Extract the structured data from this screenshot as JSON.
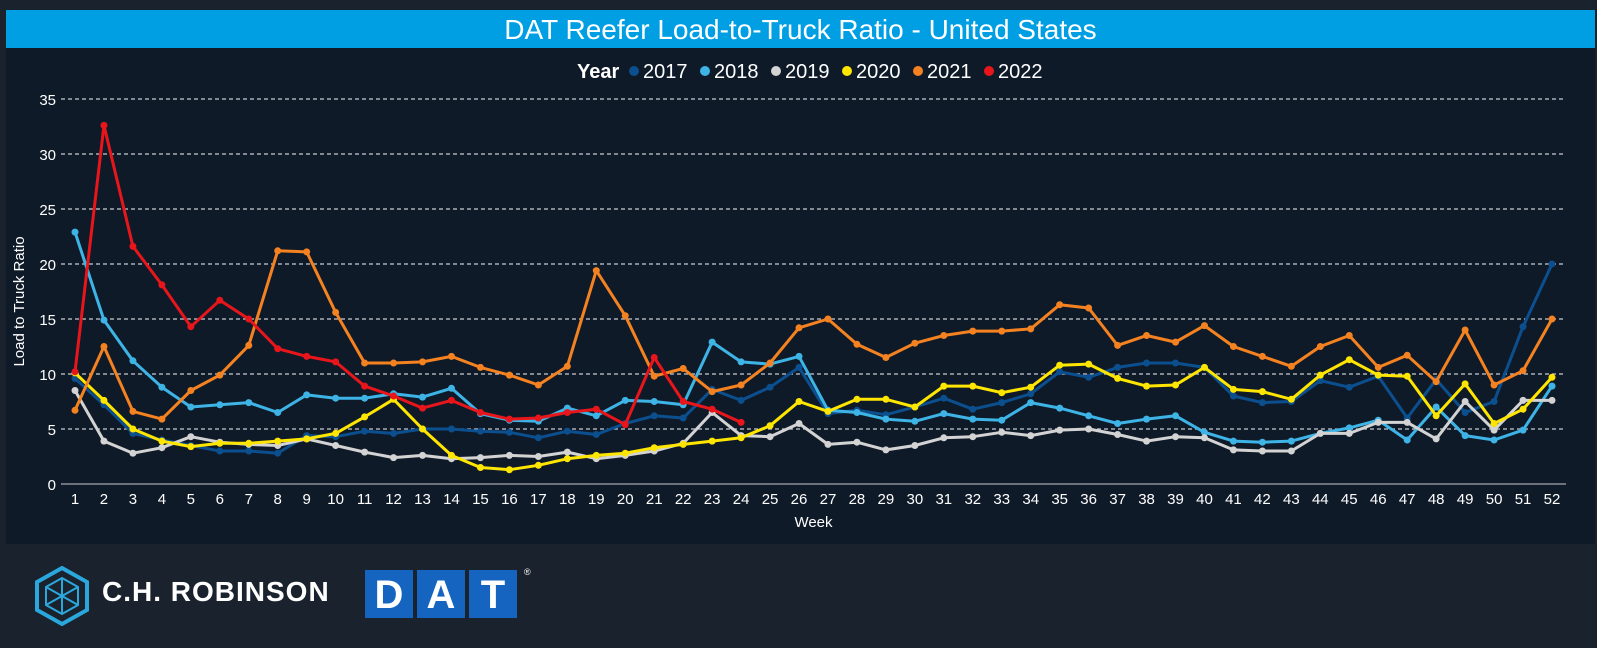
{
  "chart_data": {
    "type": "line",
    "title": "DAT Reefer Load-to-Truck Ratio - United States",
    "xlabel": "Week",
    "ylabel": "Load to Truck Ratio",
    "legend_title": "Year",
    "legend_position": "top-center",
    "ylim": [
      0,
      35
    ],
    "yticks": [
      0,
      5,
      10,
      15,
      20,
      25,
      30,
      35
    ],
    "grid": "horizontal-dashed",
    "categories": [
      1,
      2,
      3,
      4,
      5,
      6,
      7,
      8,
      9,
      10,
      11,
      12,
      13,
      14,
      15,
      16,
      17,
      18,
      19,
      20,
      21,
      22,
      23,
      24,
      25,
      26,
      27,
      28,
      29,
      30,
      31,
      32,
      33,
      34,
      35,
      36,
      37,
      38,
      39,
      40,
      41,
      42,
      43,
      44,
      45,
      46,
      47,
      48,
      49,
      50,
      51,
      52
    ],
    "series": [
      {
        "name": "2017",
        "color": "#0b4f8f",
        "values": [
          9.6,
          7.2,
          4.6,
          4.0,
          3.5,
          3.0,
          3.0,
          2.8,
          4.4,
          4.3,
          4.8,
          4.6,
          5.0,
          5.0,
          4.8,
          4.7,
          4.2,
          4.8,
          4.5,
          5.5,
          6.2,
          6.0,
          8.6,
          7.6,
          8.8,
          10.6,
          6.4,
          6.7,
          6.3,
          7.0,
          7.8,
          6.8,
          7.4,
          8.2,
          10.2,
          9.7,
          10.6,
          11.0,
          11.0,
          10.6,
          8.0,
          7.4,
          7.5,
          9.4,
          8.8,
          9.8,
          6.0,
          9.5,
          6.5,
          7.5,
          14.3,
          20.0
        ]
      },
      {
        "name": "2018",
        "color": "#3db4e5",
        "values": [
          22.9,
          14.9,
          11.2,
          8.8,
          7.0,
          7.2,
          7.4,
          6.5,
          8.1,
          7.8,
          7.8,
          8.2,
          7.9,
          8.7,
          6.4,
          5.8,
          5.7,
          6.9,
          6.2,
          7.6,
          7.5,
          7.2,
          12.9,
          11.1,
          10.9,
          11.6,
          6.7,
          6.5,
          5.9,
          5.7,
          6.4,
          5.9,
          5.8,
          7.4,
          6.9,
          6.2,
          5.5,
          5.9,
          6.2,
          4.7,
          3.9,
          3.8,
          3.9,
          4.6,
          5.1,
          5.8,
          4.0,
          7.0,
          4.4,
          4.0,
          4.9,
          8.9
        ]
      },
      {
        "name": "2019",
        "color": "#d3d3d3",
        "values": [
          8.5,
          3.9,
          2.8,
          3.3,
          4.3,
          3.8,
          3.6,
          3.5,
          4.1,
          3.5,
          2.9,
          2.4,
          2.6,
          2.3,
          2.4,
          2.6,
          2.5,
          2.9,
          2.3,
          2.6,
          3.0,
          3.7,
          6.5,
          4.4,
          4.3,
          5.5,
          3.6,
          3.8,
          3.1,
          3.5,
          4.2,
          4.3,
          4.7,
          4.4,
          4.9,
          5.0,
          4.5,
          3.9,
          4.3,
          4.2,
          3.1,
          3.0,
          3.0,
          4.6,
          4.6,
          5.6,
          5.6,
          4.1,
          7.5,
          4.9,
          7.6,
          7.6
        ]
      },
      {
        "name": "2020",
        "color": "#ffe600",
        "values": [
          10.1,
          7.6,
          5.0,
          3.9,
          3.4,
          3.7,
          3.7,
          3.9,
          4.1,
          4.6,
          6.1,
          7.7,
          5.0,
          2.6,
          1.5,
          1.3,
          1.7,
          2.3,
          2.6,
          2.8,
          3.3,
          3.6,
          3.9,
          4.2,
          5.3,
          7.5,
          6.6,
          7.7,
          7.7,
          7.0,
          8.9,
          8.9,
          8.3,
          8.8,
          10.8,
          10.9,
          9.6,
          8.9,
          9.0,
          10.6,
          8.6,
          8.4,
          7.7,
          9.9,
          11.3,
          9.9,
          9.8,
          6.2,
          9.1,
          5.5,
          6.8,
          9.7
        ]
      },
      {
        "name": "2021",
        "color": "#f58220",
        "values": [
          6.7,
          12.5,
          6.6,
          5.9,
          8.5,
          9.9,
          12.6,
          21.2,
          21.1,
          15.6,
          11.0,
          11.0,
          11.1,
          11.6,
          10.6,
          9.9,
          9.0,
          10.7,
          19.4,
          15.3,
          9.8,
          10.5,
          8.4,
          9.0,
          11.0,
          14.2,
          15.0,
          12.7,
          11.5,
          12.8,
          13.5,
          13.9,
          13.9,
          14.1,
          16.3,
          16.0,
          12.6,
          13.5,
          12.9,
          14.4,
          12.5,
          11.6,
          10.7,
          12.5,
          13.5,
          10.6,
          11.7,
          9.3,
          14.0,
          9.0,
          10.3,
          15.0
        ]
      },
      {
        "name": "2022",
        "color": "#e8161b",
        "values": [
          10.2,
          32.6,
          21.6,
          18.1,
          14.3,
          16.7,
          15.0,
          12.3,
          11.6,
          11.1,
          8.9,
          8.0,
          6.9,
          7.6,
          6.5,
          5.9,
          6.0,
          6.5,
          6.8,
          5.4,
          11.5,
          7.5,
          6.8,
          5.6,
          null,
          null,
          null,
          null,
          null,
          null,
          null,
          null,
          null,
          null,
          null,
          null,
          null,
          null,
          null,
          null,
          null,
          null,
          null,
          null,
          null,
          null,
          null,
          null,
          null,
          null,
          null,
          null
        ]
      }
    ]
  },
  "footer": {
    "chr_name": "C.H. ROBINSON",
    "dat_letters": [
      "D",
      "A",
      "T"
    ],
    "dat_reg": "®"
  }
}
